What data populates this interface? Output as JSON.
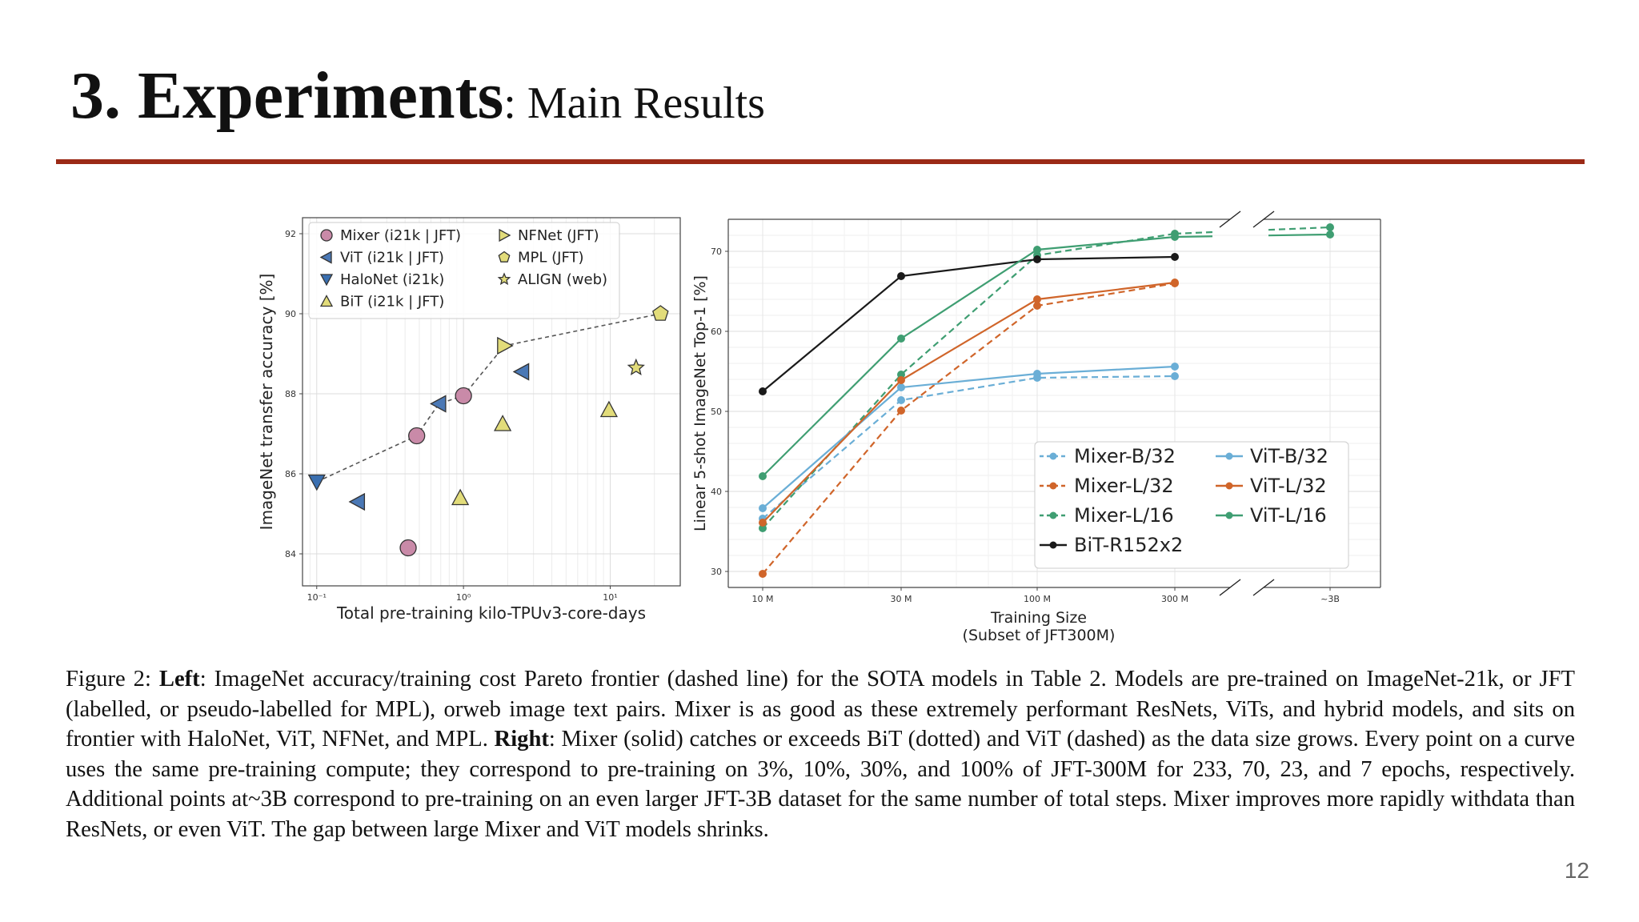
{
  "slide": {
    "title_main": "3. Experiments",
    "title_sub": ": Main Results",
    "page_number": "12",
    "accent_color": "#9b2a16"
  },
  "caption": {
    "prefix": "Figure 2: ",
    "left_label": "Left",
    "left_text": ": ImageNet accuracy/training cost Pareto frontier (dashed line) for the SOTA models in Table 2. Models are pre-trained on ImageNet-21k, or JFT (labelled, or pseudo-labelled for MPL), orweb image text pairs. Mixer is as good as these extremely performant ResNets, ViTs, and hybrid models, and sits on frontier with HaloNet, ViT, NFNet, and MPL. ",
    "right_label": "Right",
    "right_text": ": Mixer (solid) catches or exceeds BiT (dotted) and ViT (dashed) as the data size grows. Every point on a curve uses the same pre-training compute; they correspond to pre-training on 3%, 10%, 30%, and 100% of JFT-300M for 233, 70, 23, and 7 epochs, respectively. Additional points at~3B correspond to pre-training on an even larger JFT-3B dataset for the same number of total steps. Mixer improves more rapidly withdata than ResNets, or even ViT. The gap between large Mixer and ViT models shrinks."
  },
  "chart_data": [
    {
      "type": "scatter",
      "title": "",
      "xlabel": "Total pre-training kilo-TPUv3-core-days",
      "ylabel": "ImageNet transfer accuracy [%]",
      "x_scale": "log",
      "xlim": [
        0.08,
        30
      ],
      "ylim": [
        83.2,
        92.4
      ],
      "x_ticks": [
        0.1,
        1,
        10
      ],
      "x_tick_labels": [
        "10⁻¹",
        "10⁰",
        "10¹"
      ],
      "y_ticks": [
        84,
        86,
        88,
        90,
        92
      ],
      "y_tick_labels": [
        "84",
        "86",
        "88",
        "90",
        "92"
      ],
      "grid": true,
      "legend_position": "top-left",
      "series": [
        {
          "name": "Mixer (i21k | JFT)",
          "marker": "circle",
          "color": "#c98aa8",
          "points": [
            [
              0.42,
              84.15
            ],
            [
              0.48,
              86.95
            ],
            [
              1.0,
              87.95
            ]
          ]
        },
        {
          "name": "ViT (i21k | JFT)",
          "marker": "triangle-left",
          "color": "#4a78b5",
          "points": [
            [
              0.19,
              85.3
            ],
            [
              0.68,
              87.75
            ],
            [
              2.5,
              88.55
            ]
          ]
        },
        {
          "name": "HaloNet (i21k)",
          "marker": "triangle-down",
          "color": "#3a6fb0",
          "points": [
            [
              0.1,
              85.8
            ]
          ]
        },
        {
          "name": "BiT (i21k | JFT)",
          "marker": "triangle-up",
          "color": "#e2dc7a",
          "points": [
            [
              0.95,
              85.4
            ],
            [
              1.85,
              87.25
            ],
            [
              9.8,
              87.6
            ]
          ]
        },
        {
          "name": "NFNet (JFT)",
          "marker": "triangle-right",
          "color": "#e2dc7a",
          "points": [
            [
              1.9,
              89.2
            ]
          ]
        },
        {
          "name": "MPL (JFT)",
          "marker": "pentagon",
          "color": "#e2dc7a",
          "points": [
            [
              22.0,
              90.0
            ]
          ]
        },
        {
          "name": "ALIGN (web)",
          "marker": "star",
          "color": "#e2dc7a",
          "points": [
            [
              15.0,
              88.65
            ]
          ]
        }
      ],
      "pareto_frontier": [
        [
          0.1,
          85.8
        ],
        [
          0.48,
          86.95
        ],
        [
          0.68,
          87.75
        ],
        [
          1.0,
          87.95
        ],
        [
          1.9,
          89.2
        ],
        [
          22.0,
          90.0
        ]
      ]
    },
    {
      "type": "line",
      "title": "",
      "xlabel": "Training Size",
      "xlabel2": "(Subset of JFT300M)",
      "ylabel": "Linear 5-shot ImageNet Top-1 [%]",
      "categories": [
        "10 M",
        "30 M",
        "100 M",
        "300 M",
        "~3B"
      ],
      "x_scale": "log, broken axis before ~3B",
      "ylim": [
        28,
        74
      ],
      "y_ticks": [
        30,
        40,
        50,
        60,
        70
      ],
      "y_tick_labels": [
        "30",
        "40",
        "50",
        "60",
        "70"
      ],
      "grid": true,
      "legend_position": "bottom-right",
      "series": [
        {
          "name": "Mixer-B/32",
          "style": "dashed",
          "color": "#6aaed6",
          "values": [
            36.6,
            51.4,
            54.2,
            54.4,
            null
          ]
        },
        {
          "name": "Mixer-L/32",
          "style": "dashed",
          "color": "#d0652a",
          "values": [
            29.7,
            50.1,
            63.2,
            66.0,
            null
          ]
        },
        {
          "name": "Mixer-L/16",
          "style": "dashed",
          "color": "#3f9e72",
          "values": [
            35.4,
            54.6,
            69.5,
            72.2,
            73.0
          ]
        },
        {
          "name": "BiT-R152x2",
          "style": "solid",
          "color": "#1a1a1a",
          "values": [
            52.5,
            66.9,
            69.0,
            69.3,
            null
          ]
        },
        {
          "name": "ViT-B/32",
          "style": "solid",
          "color": "#6aaed6",
          "values": [
            37.9,
            53.0,
            54.7,
            55.6,
            null
          ]
        },
        {
          "name": "ViT-L/32",
          "style": "solid",
          "color": "#d0652a",
          "values": [
            36.1,
            53.9,
            64.0,
            66.1,
            null
          ]
        },
        {
          "name": "ViT-L/16",
          "style": "solid",
          "color": "#3f9e72",
          "values": [
            41.9,
            59.1,
            70.2,
            71.8,
            72.1
          ]
        }
      ]
    }
  ]
}
